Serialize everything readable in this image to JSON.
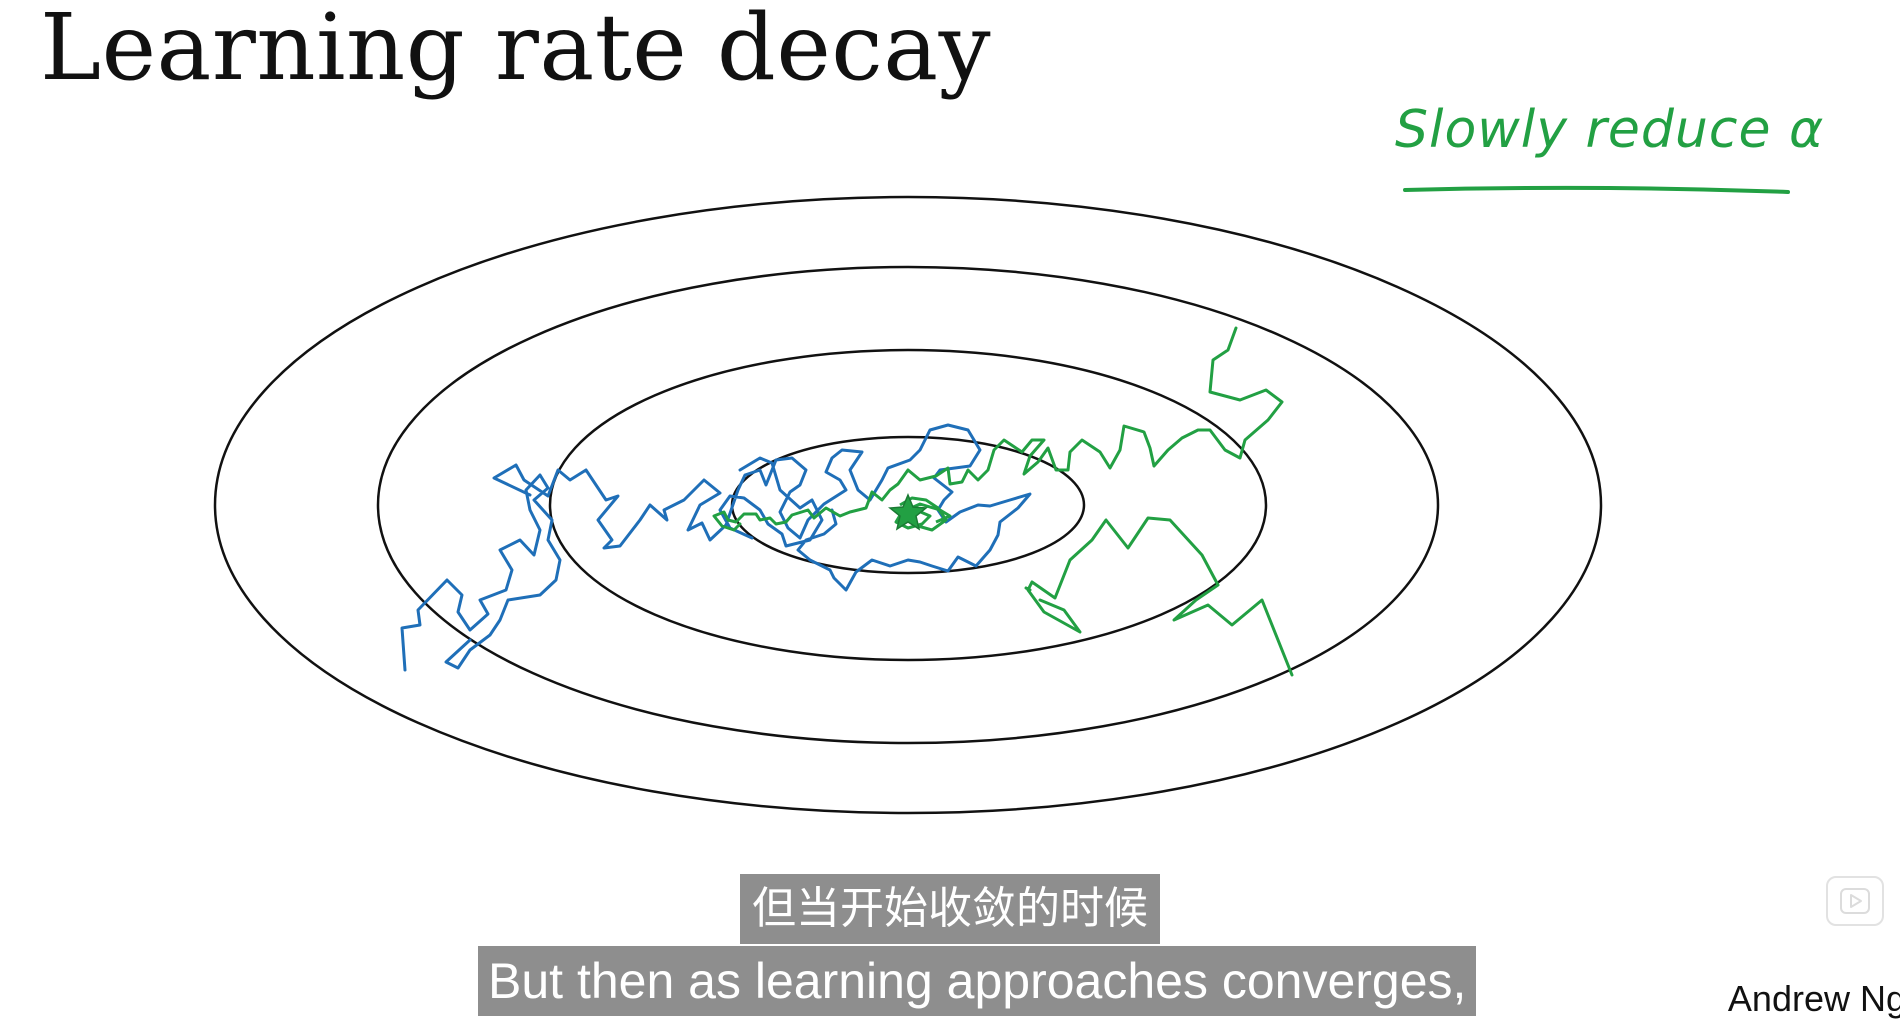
{
  "slide": {
    "title": "Learning rate decay",
    "annotation": "Slowly reduce α",
    "author": "Andrew Ng"
  },
  "subtitles": {
    "chinese": "但当开始收敛的时候",
    "english": "But then as learning approaches converges,"
  },
  "icons": {
    "player": "play-icon",
    "minimum": "star-icon"
  },
  "colors": {
    "contour": "#111111",
    "fixed_rate_path": "#1f6fb8",
    "decayed_rate_path": "#22a043",
    "subtitle_background": "#6e6e6e",
    "subtitle_text": "#ffffff"
  }
}
